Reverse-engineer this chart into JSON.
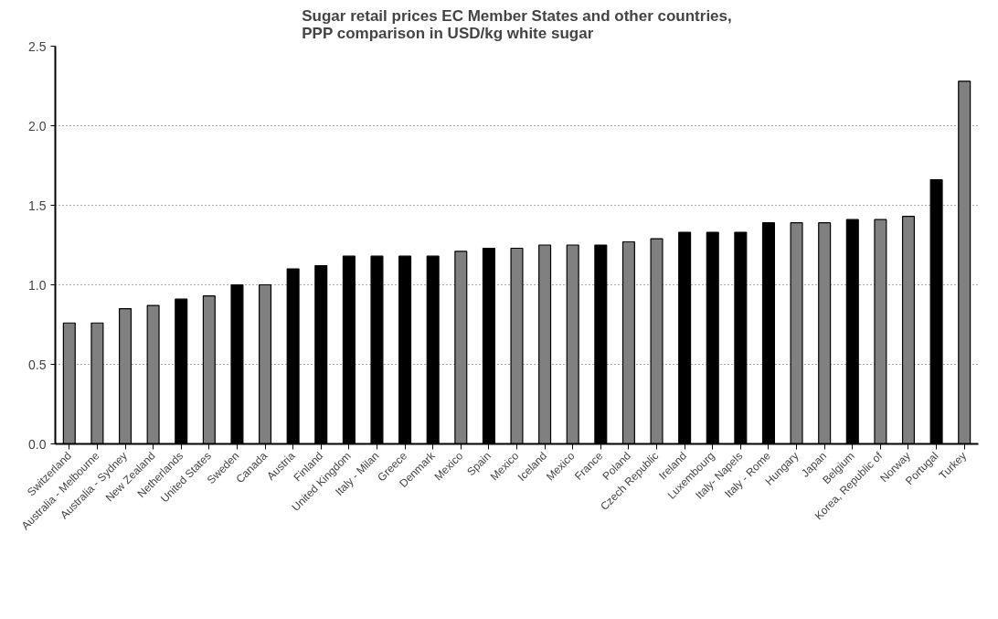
{
  "chart_data": {
    "type": "bar",
    "title": "Sugar retail prices EC Member States and other countries,\nPPP comparison in USD/kg white sugar",
    "categories": [
      "Switzerland",
      "Australia - Melbourne",
      "Australia - Sydney",
      "New Zealand",
      "Netherlands",
      "United States",
      "Sweden",
      "Canada",
      "Austria",
      "Finland",
      "United Kingdom",
      "Italy - Milan",
      "Greece",
      "Denmark",
      "Mexico",
      "Spain",
      "Mexico",
      "Iceland",
      "Mexico",
      "France",
      "Poland",
      "Czech Republic",
      "Ireland",
      "Luxembourg",
      "Italy- Napels",
      "Italy - Rome",
      "Hungary",
      "Japan",
      "Belgium",
      "Korea, Republic of",
      "Norway",
      "Portugal",
      "Turkey"
    ],
    "values": [
      0.76,
      0.76,
      0.85,
      0.87,
      0.91,
      0.93,
      1.0,
      1.0,
      1.1,
      1.12,
      1.18,
      1.18,
      1.18,
      1.18,
      1.21,
      1.23,
      1.23,
      1.25,
      1.25,
      1.25,
      1.27,
      1.29,
      1.33,
      1.33,
      1.33,
      1.39,
      1.39,
      1.39,
      1.41,
      1.41,
      1.43,
      1.66,
      2.28
    ],
    "colors": [
      "#808080",
      "#808080",
      "#808080",
      "#808080",
      "#000000",
      "#808080",
      "#000000",
      "#808080",
      "#000000",
      "#000000",
      "#000000",
      "#000000",
      "#000000",
      "#000000",
      "#808080",
      "#000000",
      "#808080",
      "#808080",
      "#808080",
      "#000000",
      "#808080",
      "#808080",
      "#000000",
      "#000000",
      "#000000",
      "#000000",
      "#808080",
      "#808080",
      "#000000",
      "#808080",
      "#808080",
      "#000000",
      "#808080"
    ],
    "ylim": [
      0,
      2.5
    ],
    "yticks": [
      {
        "value": 0,
        "label": "0.0"
      },
      {
        "value": 0.5,
        "label": "0.5"
      },
      {
        "value": 1,
        "label": "1.0"
      },
      {
        "value": 1.5,
        "label": "1.5"
      },
      {
        "value": 2,
        "label": "2.0"
      },
      {
        "value": 2.5,
        "label": "2.5"
      }
    ],
    "grid": "y"
  }
}
